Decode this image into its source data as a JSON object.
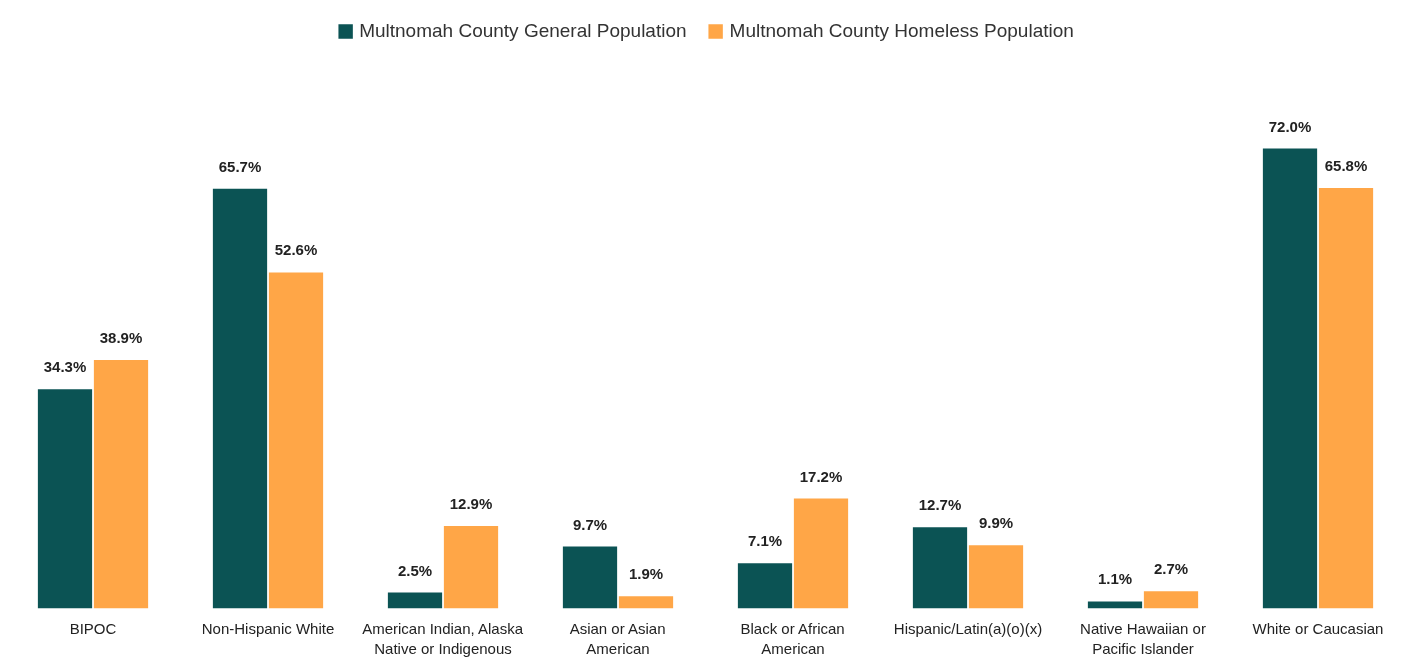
{
  "chart_data": {
    "type": "bar",
    "relative": false,
    "categories": [
      "BIPOC",
      "Non-Hispanic White",
      "American Indian, Alaska\nNative or Indigenous",
      "Asian or Asian\nAmerican",
      "Black or African\nAmerican",
      "Hispanic/Latin(a)(o)(x)",
      "Native Hawaiian or\nPacific Islander",
      "White or Caucasian"
    ],
    "series": [
      {
        "name": "Multnomah County General Population",
        "color": "#0b5354",
        "values": [
          34.3,
          65.7,
          2.5,
          9.7,
          7.1,
          12.7,
          1.1,
          72.0
        ],
        "value_labels": [
          "34.3%",
          "65.7%",
          "2.5%",
          "9.7%",
          "7.1%",
          "12.7%",
          "1.1%",
          "72.0%"
        ]
      },
      {
        "name": "Multnomah County Homeless Population",
        "color": "#ffa647",
        "values": [
          38.9,
          52.6,
          12.9,
          1.9,
          17.2,
          9.9,
          2.7,
          65.8
        ],
        "value_labels": [
          "38.9%",
          "52.6%",
          "12.9%",
          "1.9%",
          "17.2%",
          "9.9%",
          "2.7%",
          "65.8%"
        ]
      }
    ],
    "legend": "top",
    "grid": false
  }
}
